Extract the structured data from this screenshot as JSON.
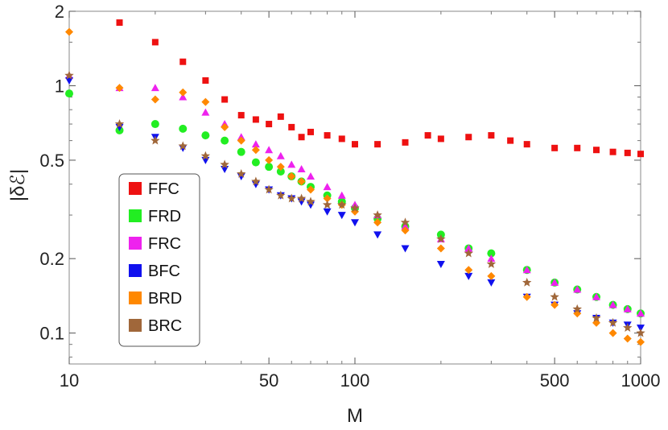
{
  "chart_data": {
    "type": "scatter",
    "xlabel": "M",
    "ylabel": "|δℰ|",
    "xscale": "log",
    "yscale": "log",
    "xlim": [
      10,
      1000
    ],
    "ylim": [
      0.075,
      2.0
    ],
    "x_ticks": [
      {
        "v": 10,
        "label": "10"
      },
      {
        "v": 50,
        "label": "50"
      },
      {
        "v": 100,
        "label": "100"
      },
      {
        "v": 500,
        "label": "500"
      },
      {
        "v": 1000,
        "label": "1000"
      }
    ],
    "x_minor_ticks": [
      20,
      30,
      40,
      60,
      70,
      80,
      90,
      200,
      300,
      400,
      600,
      700,
      800,
      900
    ],
    "y_ticks": [
      {
        "v": 0.1,
        "label": "0.1"
      },
      {
        "v": 0.2,
        "label": "0.2"
      },
      {
        "v": 0.5,
        "label": "0.5"
      },
      {
        "v": 1,
        "label": "1"
      },
      {
        "v": 2,
        "label": "2"
      }
    ],
    "y_minor_ticks": [
      0.08,
      0.09,
      0.3,
      0.4,
      0.6,
      0.7,
      0.8,
      0.9,
      1.5
    ],
    "legend": {
      "position": "lower-left",
      "entries": [
        "FFC",
        "FRD",
        "FRC",
        "BFC",
        "BRD",
        "BRC"
      ]
    },
    "series": [
      {
        "name": "FFC",
        "marker": "square",
        "color": "#ee1111",
        "x": [
          15,
          20,
          25,
          30,
          35,
          40,
          45,
          50,
          55,
          60,
          65,
          70,
          80,
          90,
          100,
          120,
          150,
          180,
          200,
          250,
          300,
          350,
          400,
          500,
          600,
          700,
          800,
          900,
          1000
        ],
        "y": [
          1.8,
          1.5,
          1.25,
          1.05,
          0.88,
          0.76,
          0.73,
          0.7,
          0.75,
          0.68,
          0.62,
          0.65,
          0.63,
          0.61,
          0.58,
          0.58,
          0.59,
          0.63,
          0.61,
          0.62,
          0.63,
          0.6,
          0.58,
          0.56,
          0.56,
          0.55,
          0.54,
          0.535,
          0.53
        ]
      },
      {
        "name": "FRD",
        "marker": "circle",
        "color": "#22ee22",
        "x": [
          10,
          15,
          20,
          25,
          30,
          35,
          40,
          45,
          50,
          55,
          60,
          65,
          70,
          80,
          90,
          100,
          120,
          150,
          200,
          250,
          300,
          400,
          500,
          600,
          700,
          800,
          900,
          1000
        ],
        "y": [
          0.93,
          0.66,
          0.7,
          0.67,
          0.63,
          0.6,
          0.54,
          0.49,
          0.47,
          0.45,
          0.43,
          0.41,
          0.39,
          0.36,
          0.34,
          0.32,
          0.29,
          0.27,
          0.25,
          0.22,
          0.21,
          0.18,
          0.16,
          0.15,
          0.14,
          0.13,
          0.125,
          0.12
        ]
      },
      {
        "name": "FRC",
        "marker": "triangle-up",
        "color": "#ee22ee",
        "x": [
          10,
          15,
          20,
          25,
          30,
          35,
          40,
          45,
          50,
          55,
          60,
          65,
          70,
          80,
          90,
          100,
          120,
          150,
          200,
          250,
          300,
          400,
          500,
          600,
          700,
          800,
          900,
          1000
        ],
        "y": [
          1.1,
          0.98,
          0.98,
          0.9,
          0.78,
          0.7,
          0.62,
          0.58,
          0.55,
          0.52,
          0.48,
          0.46,
          0.43,
          0.39,
          0.36,
          0.33,
          0.3,
          0.27,
          0.24,
          0.22,
          0.2,
          0.18,
          0.16,
          0.15,
          0.14,
          0.13,
          0.125,
          0.12
        ]
      },
      {
        "name": "BFC",
        "marker": "triangle-down",
        "color": "#1111ee",
        "x": [
          10,
          15,
          20,
          25,
          30,
          35,
          40,
          45,
          50,
          55,
          60,
          65,
          70,
          80,
          90,
          100,
          120,
          150,
          200,
          250,
          300,
          400,
          500,
          600,
          700,
          800,
          900,
          1000
        ],
        "y": [
          1.05,
          0.68,
          0.62,
          0.56,
          0.5,
          0.46,
          0.43,
          0.4,
          0.38,
          0.36,
          0.35,
          0.34,
          0.33,
          0.31,
          0.3,
          0.28,
          0.25,
          0.22,
          0.19,
          0.17,
          0.16,
          0.14,
          0.13,
          0.12,
          0.115,
          0.11,
          0.108,
          0.105
        ]
      },
      {
        "name": "BRD",
        "marker": "diamond",
        "color": "#ff8800",
        "x": [
          10,
          15,
          20,
          25,
          30,
          35,
          40,
          45,
          50,
          55,
          60,
          65,
          70,
          80,
          90,
          100,
          120,
          150,
          200,
          250,
          300,
          400,
          500,
          600,
          700,
          800,
          900,
          1000
        ],
        "y": [
          1.65,
          0.98,
          0.88,
          0.94,
          0.86,
          0.68,
          0.6,
          0.55,
          0.5,
          0.47,
          0.43,
          0.41,
          0.38,
          0.35,
          0.33,
          0.31,
          0.28,
          0.26,
          0.22,
          0.18,
          0.17,
          0.14,
          0.13,
          0.12,
          0.11,
          0.1,
          0.095,
          0.092
        ]
      },
      {
        "name": "BRC",
        "marker": "star",
        "color": "#a0673a",
        "x": [
          10,
          15,
          20,
          25,
          30,
          35,
          40,
          45,
          50,
          55,
          60,
          65,
          70,
          80,
          90,
          100,
          120,
          150,
          200,
          250,
          300,
          400,
          500,
          600,
          700,
          800,
          900,
          1000
        ],
        "y": [
          1.1,
          0.7,
          0.6,
          0.57,
          0.52,
          0.48,
          0.44,
          0.41,
          0.38,
          0.36,
          0.35,
          0.35,
          0.34,
          0.33,
          0.33,
          0.32,
          0.3,
          0.28,
          0.24,
          0.21,
          0.19,
          0.16,
          0.14,
          0.125,
          0.115,
          0.11,
          0.105,
          0.1
        ]
      }
    ]
  }
}
